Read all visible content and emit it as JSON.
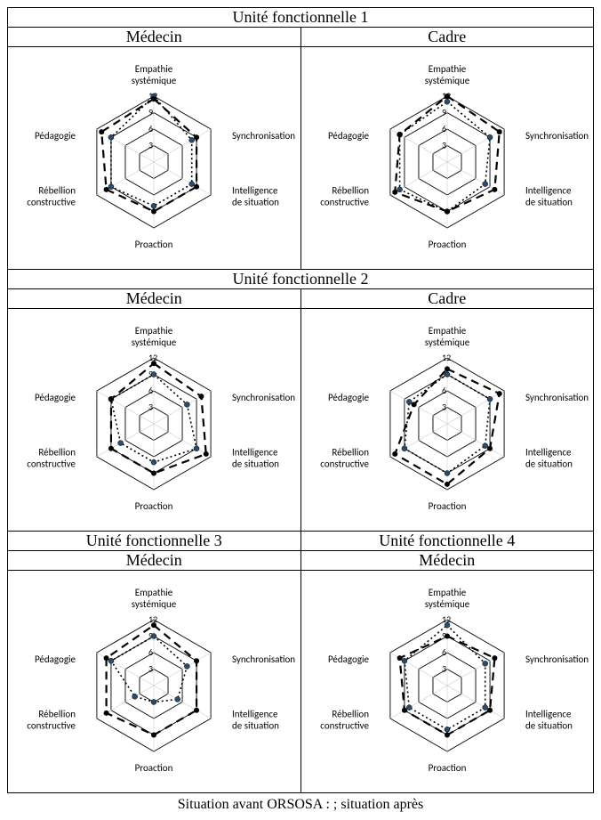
{
  "global": {
    "background_color": "#ffffff",
    "grid_color": "#000000",
    "series_before_style": "dotted",
    "series_after_style": "dashed",
    "marker_radius": 3,
    "marker_fill": "#000000",
    "marker_fill_alt": "#2b4a6f",
    "line_width_dashed": 2.2,
    "line_width_dotted": 1.6,
    "axis_max": 12,
    "ticks": [
      3,
      6,
      9,
      12
    ],
    "axis_label_fontsize": 11,
    "tick_label_fontsize": 10
  },
  "axes": [
    {
      "key": "empathie",
      "line1": "Empathie",
      "line2": "systémique"
    },
    {
      "key": "synchronisation",
      "line1": "Synchronisation",
      "line2": ""
    },
    {
      "key": "intelligence",
      "line1": "Intelligence",
      "line2": "de situation"
    },
    {
      "key": "proaction",
      "line1": "Proaction",
      "line2": ""
    },
    {
      "key": "rebellion",
      "line1": "Rébellion",
      "line2": "constructive"
    },
    {
      "key": "pedagogie",
      "line1": "Pédagogie",
      "line2": ""
    }
  ],
  "rows": [
    {
      "section_title": "Unité fonctionnelle 1",
      "cells": [
        {
          "title": "Médecin",
          "series": {
            "before": [
              12,
              8,
              8,
              8,
              9,
              9
            ],
            "after": [
              11.5,
              9,
              9,
              9,
              10,
              11
            ]
          }
        },
        {
          "title": "Cadre",
          "series": {
            "before": [
              11,
              9,
              8,
              9,
              10,
              10
            ],
            "after": [
              12,
              11,
              10,
              9,
              11,
              10
            ]
          }
        }
      ]
    },
    {
      "section_title": "Unité fonctionnelle 2",
      "cells": [
        {
          "title": "Médecin",
          "series": {
            "before": [
              9,
              7,
              9,
              7,
              7,
              9
            ],
            "after": [
              11,
              10,
              11,
              9,
              9,
              9
            ]
          }
        },
        {
          "title": "Cadre",
          "series": {
            "before": [
              9,
              9,
              8,
              9,
              9,
              8
            ],
            "after": [
              10,
              11,
              9,
              11,
              11,
              7
            ]
          }
        }
      ]
    },
    {
      "section_titles": [
        "Unité fonctionnelle 3",
        "Unité fonctionnelle 4"
      ],
      "cells": [
        {
          "title": "Médecin",
          "series": {
            "before": [
              9,
              7,
              5,
              3,
              4,
              9
            ],
            "after": [
              11,
              9,
              9,
              9,
              10,
              10
            ]
          }
        },
        {
          "title": "Médecin",
          "series": {
            "before": [
              11,
              8,
              8,
              8,
              8,
              9
            ],
            "after": [
              9,
              10,
              9,
              9,
              9,
              10
            ]
          }
        }
      ]
    }
  ],
  "footer": "Situation avant ORSOSA :        ; situation après"
}
